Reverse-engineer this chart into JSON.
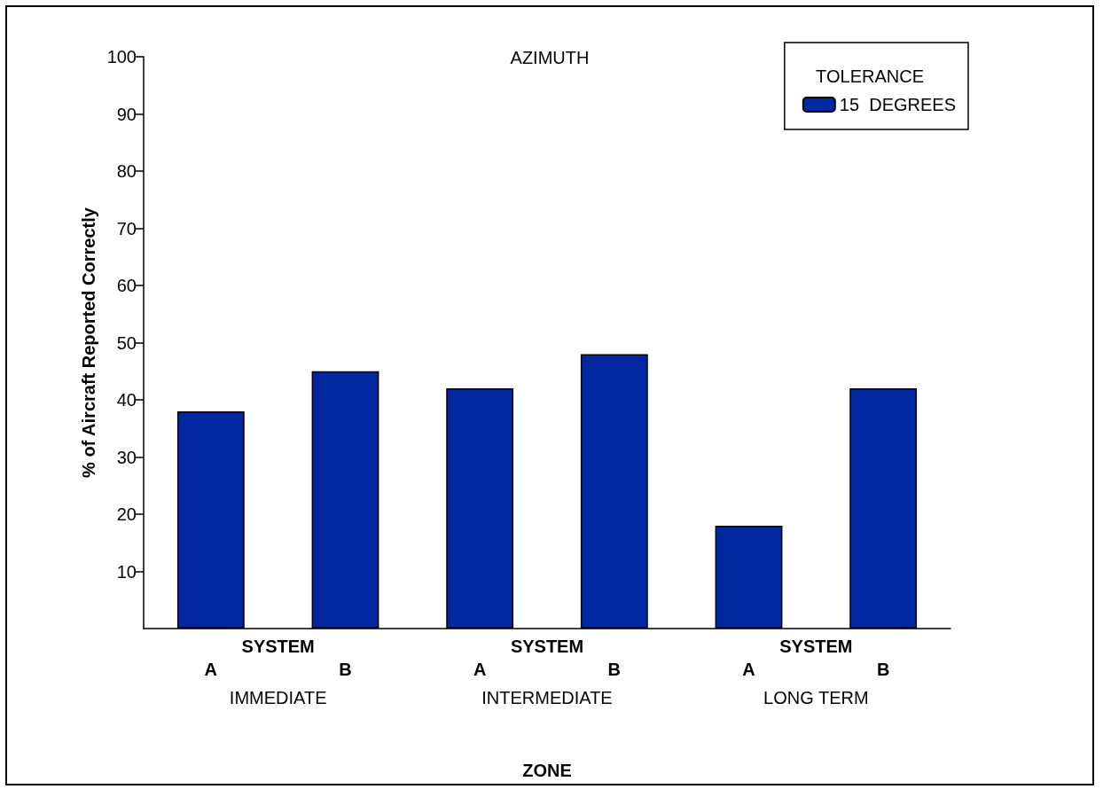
{
  "chart_data": {
    "type": "bar",
    "title": "AZIMUTH",
    "xlabel": "ZONE",
    "ylabel": "% of Aircraft Reported Correctly",
    "legend_title": "TOLERANCE",
    "categories": [
      "A",
      "B",
      "A",
      "B",
      "A",
      "B"
    ],
    "series": [
      {
        "name": "15  DEGREES",
        "color": "#0026a0",
        "values": [
          38,
          45,
          42,
          48,
          18,
          42
        ]
      }
    ],
    "annotations": [
      "SYSTEM",
      "SYSTEM",
      "SYSTEM",
      "IMMEDIATE",
      "INTERMEDIATE",
      "LONG TERM"
    ],
    "ylim": [
      0,
      100
    ],
    "yticks": [
      10,
      20,
      30,
      40,
      50,
      60,
      70,
      80,
      90,
      100
    ],
    "grid": false,
    "legend": "top right"
  }
}
